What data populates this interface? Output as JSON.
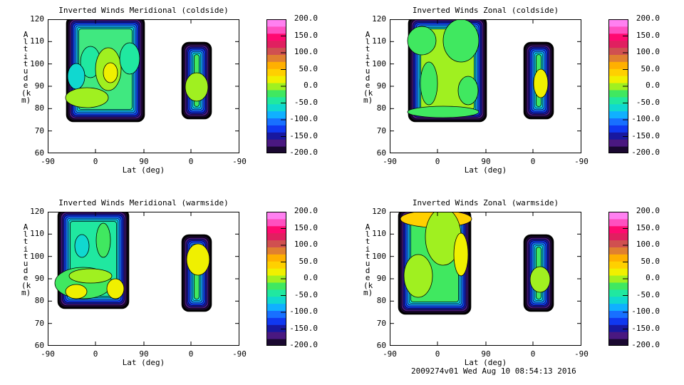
{
  "chart_data": [
    {
      "type": "heatmap",
      "title": "Inverted Winds Meridional (coldside)",
      "xlabel": "Lat (deg)",
      "ylabel": "Altitude (km)",
      "x_tick_labels": [
        "-90",
        "0",
        "90",
        "0",
        "-90"
      ],
      "y_tick_labels": [
        "60",
        "70",
        "80",
        "90",
        "100",
        "110",
        "120"
      ],
      "ylim": [
        60,
        120
      ],
      "colorbar": {
        "range": [
          -200,
          200
        ],
        "levels": 16,
        "tick_labels": [
          "200.0",
          "150.0",
          "100.0",
          "50.0",
          "0.0",
          "-50.0",
          "-100.0",
          "-150.0",
          "-200.0"
        ]
      }
    },
    {
      "type": "heatmap",
      "title": "Inverted Winds Zonal (coldside)",
      "xlabel": "Lat (deg)",
      "ylabel": "Altitude (km)",
      "x_tick_labels": [
        "-90",
        "0",
        "90",
        "0",
        "-90"
      ],
      "y_tick_labels": [
        "60",
        "70",
        "80",
        "90",
        "100",
        "110",
        "120"
      ],
      "ylim": [
        60,
        120
      ],
      "colorbar": {
        "range": [
          -200,
          200
        ],
        "levels": 16,
        "tick_labels": [
          "200.0",
          "150.0",
          "100.0",
          "50.0",
          "0.0",
          "-50.0",
          "-100.0",
          "-150.0",
          "-200.0"
        ]
      }
    },
    {
      "type": "heatmap",
      "title": "Inverted Winds Meridional (warmside)",
      "xlabel": "Lat (deg)",
      "ylabel": "Altitude (km)",
      "x_tick_labels": [
        "-90",
        "0",
        "90",
        "0",
        "-90"
      ],
      "y_tick_labels": [
        "60",
        "70",
        "80",
        "90",
        "100",
        "110",
        "120"
      ],
      "ylim": [
        60,
        120
      ],
      "colorbar": {
        "range": [
          -200,
          200
        ],
        "levels": 16,
        "tick_labels": [
          "200.0",
          "150.0",
          "100.0",
          "50.0",
          "0.0",
          "-50.0",
          "-100.0",
          "-150.0",
          "-200.0"
        ]
      }
    },
    {
      "type": "heatmap",
      "title": "Inverted Winds Zonal (warmside)",
      "xlabel": "Lat (deg)",
      "ylabel": "Altitude (km)",
      "x_tick_labels": [
        "-90",
        "0",
        "90",
        "0",
        "-90"
      ],
      "y_tick_labels": [
        "60",
        "70",
        "80",
        "90",
        "100",
        "110",
        "120"
      ],
      "ylim": [
        60,
        120
      ],
      "colorbar": {
        "range": [
          -200,
          200
        ],
        "levels": 16,
        "tick_labels": [
          "200.0",
          "150.0",
          "100.0",
          "50.0",
          "0.0",
          "-50.0",
          "-100.0",
          "-150.0",
          "-200.0"
        ]
      }
    }
  ],
  "colormap": [
    "#1a0830",
    "#4a1880",
    "#1818a0",
    "#1038f0",
    "#1870ff",
    "#10b0ff",
    "#10d8d0",
    "#20e8a0",
    "#40e860",
    "#a0f020",
    "#f0f000",
    "#ffd000",
    "#ffb000",
    "#e08030",
    "#d05050",
    "#e02060",
    "#ff0a70",
    "#ff50c0",
    "#ff80f0"
  ],
  "footer": "2009274v01 Wed Aug 10 08:54:13 2016"
}
